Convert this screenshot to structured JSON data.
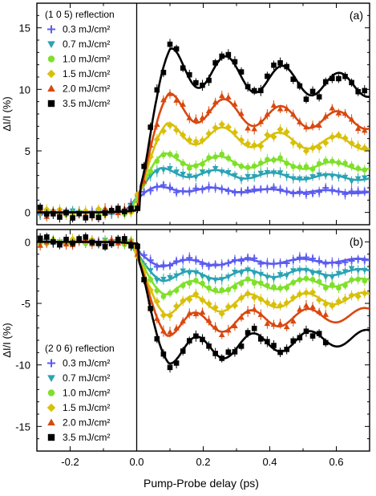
{
  "chart_data": [
    {
      "type": "scatter",
      "panel_label": "(a)",
      "ylabel": "ΔI/I (%)",
      "xlabel": "",
      "xlim": [
        -0.3,
        0.7
      ],
      "ylim": [
        -1,
        17
      ],
      "xticks": [
        -0.2,
        0.0,
        0.2,
        0.4,
        0.6
      ],
      "yticks": [
        0,
        5,
        10,
        15
      ],
      "grid": false,
      "vertical_line_x": 0.0,
      "legend_title": "(1 0 5) reflection",
      "legend_position": "top-left",
      "series": [
        {
          "name": "0.3 mJ/cm²",
          "fluence": 0.3,
          "color": "#5b5bf0",
          "marker": "cross",
          "amp": 2.0,
          "onset": 0.02,
          "osc": 0.22,
          "period": 0.17,
          "decay": 0.45
        },
        {
          "name": "0.7 mJ/cm²",
          "fluence": 0.7,
          "color": "#2aa3b3",
          "marker": "triangle-down",
          "amp": 3.4,
          "onset": 0.03,
          "osc": 0.4,
          "period": 0.17,
          "decay": 0.45
        },
        {
          "name": "1.0 mJ/cm²",
          "fluence": 1.0,
          "color": "#7fe02a",
          "marker": "circle",
          "amp": 4.5,
          "onset": 0.04,
          "osc": 0.55,
          "period": 0.17,
          "decay": 0.45
        },
        {
          "name": "1.5 mJ/cm²",
          "fluence": 1.5,
          "color": "#d8c00a",
          "marker": "diamond",
          "amp": 6.7,
          "onset": 0.05,
          "osc": 0.95,
          "period": 0.17,
          "decay": 0.45
        },
        {
          "name": "2.0 mJ/cm²",
          "fluence": 2.0,
          "color": "#d9480f",
          "marker": "triangle-up",
          "amp": 8.9,
          "onset": 0.055,
          "osc": 1.3,
          "period": 0.17,
          "decay": 0.45
        },
        {
          "name": "3.5 mJ/cm²",
          "fluence": 3.5,
          "color": "#000000",
          "marker": "square",
          "amp": 12.3,
          "onset": 0.06,
          "osc": 1.75,
          "period": 0.17,
          "decay": 0.45
        }
      ]
    },
    {
      "type": "scatter",
      "panel_label": "(b)",
      "ylabel": "ΔI/I (%)",
      "xlabel": "Pump-Probe delay (ps)",
      "xlim": [
        -0.3,
        0.7
      ],
      "ylim": [
        -17,
        1
      ],
      "xticks": [
        -0.2,
        0.0,
        0.2,
        0.4,
        0.6
      ],
      "yticks": [
        0,
        -5,
        -10,
        -15
      ],
      "grid": false,
      "vertical_line_x": 0.0,
      "legend_title": "(2 0 6) reflection",
      "legend_position": "bottom-left",
      "series": [
        {
          "name": "0.3 mJ/cm²",
          "fluence": 0.3,
          "color": "#5b5bf0",
          "marker": "cross",
          "amp": -1.8,
          "onset": 0.03,
          "osc": -0.3,
          "period": 0.17,
          "decay": 0.5
        },
        {
          "name": "0.7 mJ/cm²",
          "fluence": 0.7,
          "color": "#2aa3b3",
          "marker": "triangle-down",
          "amp": -2.9,
          "onset": 0.035,
          "osc": -0.45,
          "period": 0.17,
          "decay": 0.5
        },
        {
          "name": "1.0 mJ/cm²",
          "fluence": 1.0,
          "color": "#7fe02a",
          "marker": "circle",
          "amp": -3.9,
          "onset": 0.04,
          "osc": -0.6,
          "period": 0.17,
          "decay": 0.5
        },
        {
          "name": "1.5 mJ/cm²",
          "fluence": 1.5,
          "color": "#d8c00a",
          "marker": "diamond",
          "amp": -5.4,
          "onset": 0.045,
          "osc": -0.85,
          "period": 0.17,
          "decay": 0.5
        },
        {
          "name": "2.0 mJ/cm²",
          "fluence": 2.0,
          "color": "#d9480f",
          "marker": "triangle-up",
          "amp": -7.0,
          "onset": 0.05,
          "osc": -1.05,
          "period": 0.17,
          "decay": 0.5
        },
        {
          "name": "3.5 mJ/cm²",
          "fluence": 3.5,
          "color": "#000000",
          "marker": "square",
          "amp": -9.2,
          "onset": 0.055,
          "osc": -1.2,
          "period": 0.17,
          "decay": 0.5
        }
      ]
    }
  ]
}
